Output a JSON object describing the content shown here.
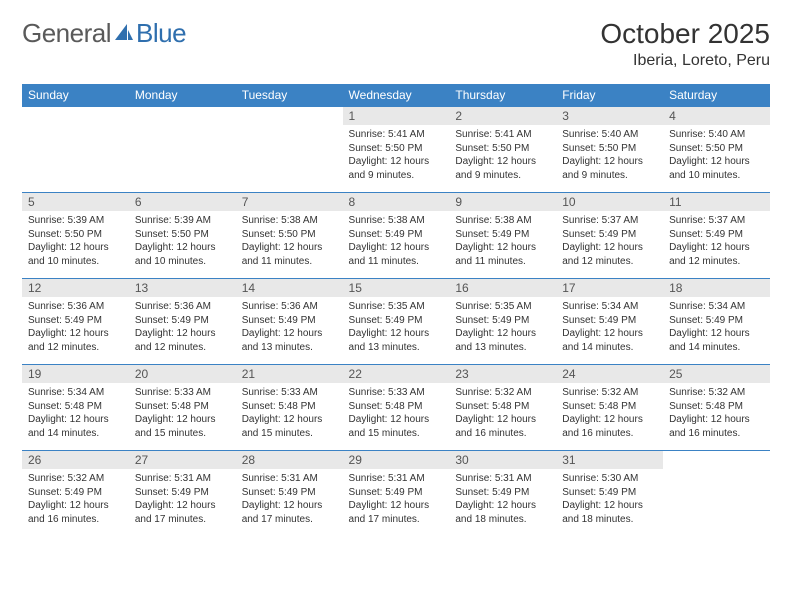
{
  "logo": {
    "text1": "General",
    "text2": "Blue",
    "color1": "#6b6b6b",
    "color2": "#2f6fae",
    "icon_color": "#2f6fae"
  },
  "header": {
    "month": "October 2025",
    "location": "Iberia, Loreto, Peru"
  },
  "colors": {
    "header_bg": "#3b82c4",
    "header_text": "#ffffff",
    "daynum_bg": "#e8e8e8",
    "border": "#3b82c4",
    "body_text": "#333333"
  },
  "dayNames": [
    "Sunday",
    "Monday",
    "Tuesday",
    "Wednesday",
    "Thursday",
    "Friday",
    "Saturday"
  ],
  "weeks": [
    [
      {
        "n": "",
        "sr": "",
        "ss": "",
        "dl": ""
      },
      {
        "n": "",
        "sr": "",
        "ss": "",
        "dl": ""
      },
      {
        "n": "",
        "sr": "",
        "ss": "",
        "dl": ""
      },
      {
        "n": "1",
        "sr": "5:41 AM",
        "ss": "5:50 PM",
        "dl": "12 hours and 9 minutes."
      },
      {
        "n": "2",
        "sr": "5:41 AM",
        "ss": "5:50 PM",
        "dl": "12 hours and 9 minutes."
      },
      {
        "n": "3",
        "sr": "5:40 AM",
        "ss": "5:50 PM",
        "dl": "12 hours and 9 minutes."
      },
      {
        "n": "4",
        "sr": "5:40 AM",
        "ss": "5:50 PM",
        "dl": "12 hours and 10 minutes."
      }
    ],
    [
      {
        "n": "5",
        "sr": "5:39 AM",
        "ss": "5:50 PM",
        "dl": "12 hours and 10 minutes."
      },
      {
        "n": "6",
        "sr": "5:39 AM",
        "ss": "5:50 PM",
        "dl": "12 hours and 10 minutes."
      },
      {
        "n": "7",
        "sr": "5:38 AM",
        "ss": "5:50 PM",
        "dl": "12 hours and 11 minutes."
      },
      {
        "n": "8",
        "sr": "5:38 AM",
        "ss": "5:49 PM",
        "dl": "12 hours and 11 minutes."
      },
      {
        "n": "9",
        "sr": "5:38 AM",
        "ss": "5:49 PM",
        "dl": "12 hours and 11 minutes."
      },
      {
        "n": "10",
        "sr": "5:37 AM",
        "ss": "5:49 PM",
        "dl": "12 hours and 12 minutes."
      },
      {
        "n": "11",
        "sr": "5:37 AM",
        "ss": "5:49 PM",
        "dl": "12 hours and 12 minutes."
      }
    ],
    [
      {
        "n": "12",
        "sr": "5:36 AM",
        "ss": "5:49 PM",
        "dl": "12 hours and 12 minutes."
      },
      {
        "n": "13",
        "sr": "5:36 AM",
        "ss": "5:49 PM",
        "dl": "12 hours and 12 minutes."
      },
      {
        "n": "14",
        "sr": "5:36 AM",
        "ss": "5:49 PM",
        "dl": "12 hours and 13 minutes."
      },
      {
        "n": "15",
        "sr": "5:35 AM",
        "ss": "5:49 PM",
        "dl": "12 hours and 13 minutes."
      },
      {
        "n": "16",
        "sr": "5:35 AM",
        "ss": "5:49 PM",
        "dl": "12 hours and 13 minutes."
      },
      {
        "n": "17",
        "sr": "5:34 AM",
        "ss": "5:49 PM",
        "dl": "12 hours and 14 minutes."
      },
      {
        "n": "18",
        "sr": "5:34 AM",
        "ss": "5:49 PM",
        "dl": "12 hours and 14 minutes."
      }
    ],
    [
      {
        "n": "19",
        "sr": "5:34 AM",
        "ss": "5:48 PM",
        "dl": "12 hours and 14 minutes."
      },
      {
        "n": "20",
        "sr": "5:33 AM",
        "ss": "5:48 PM",
        "dl": "12 hours and 15 minutes."
      },
      {
        "n": "21",
        "sr": "5:33 AM",
        "ss": "5:48 PM",
        "dl": "12 hours and 15 minutes."
      },
      {
        "n": "22",
        "sr": "5:33 AM",
        "ss": "5:48 PM",
        "dl": "12 hours and 15 minutes."
      },
      {
        "n": "23",
        "sr": "5:32 AM",
        "ss": "5:48 PM",
        "dl": "12 hours and 16 minutes."
      },
      {
        "n": "24",
        "sr": "5:32 AM",
        "ss": "5:48 PM",
        "dl": "12 hours and 16 minutes."
      },
      {
        "n": "25",
        "sr": "5:32 AM",
        "ss": "5:48 PM",
        "dl": "12 hours and 16 minutes."
      }
    ],
    [
      {
        "n": "26",
        "sr": "5:32 AM",
        "ss": "5:49 PM",
        "dl": "12 hours and 16 minutes."
      },
      {
        "n": "27",
        "sr": "5:31 AM",
        "ss": "5:49 PM",
        "dl": "12 hours and 17 minutes."
      },
      {
        "n": "28",
        "sr": "5:31 AM",
        "ss": "5:49 PM",
        "dl": "12 hours and 17 minutes."
      },
      {
        "n": "29",
        "sr": "5:31 AM",
        "ss": "5:49 PM",
        "dl": "12 hours and 17 minutes."
      },
      {
        "n": "30",
        "sr": "5:31 AM",
        "ss": "5:49 PM",
        "dl": "12 hours and 18 minutes."
      },
      {
        "n": "31",
        "sr": "5:30 AM",
        "ss": "5:49 PM",
        "dl": "12 hours and 18 minutes."
      },
      {
        "n": "",
        "sr": "",
        "ss": "",
        "dl": ""
      }
    ]
  ],
  "labels": {
    "sunrise": "Sunrise:",
    "sunset": "Sunset:",
    "daylight": "Daylight:"
  }
}
